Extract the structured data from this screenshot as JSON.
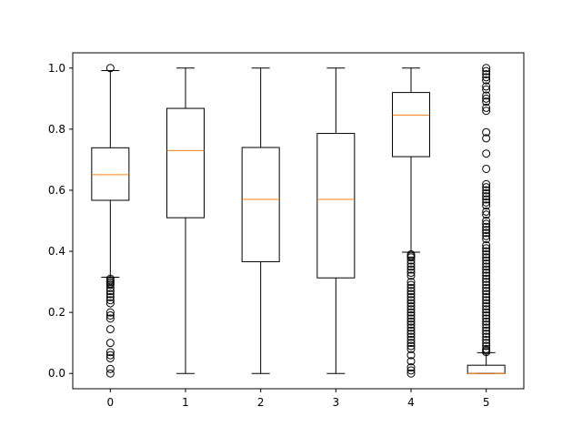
{
  "chart_data": {
    "type": "boxplot",
    "title": "",
    "xlabel": "",
    "ylabel": "",
    "categories": [
      "0",
      "1",
      "2",
      "3",
      "4",
      "5"
    ],
    "ylim": [
      -0.05,
      1.05
    ],
    "yticks": [
      "0.0",
      "0.2",
      "0.4",
      "0.6",
      "0.8",
      "1.0"
    ],
    "ytick_values": [
      0.0,
      0.2,
      0.4,
      0.6,
      0.8,
      1.0
    ],
    "grid": false,
    "colors": {
      "box": "#000000",
      "median": "#ff7f0e",
      "background": "#ffffff"
    },
    "boxes": [
      {
        "category": "0",
        "whisker_low": 0.315,
        "q1": 0.567,
        "median": 0.651,
        "q3": 0.739,
        "whisker_high": 0.992,
        "fliers": [
          1.0,
          0.31,
          0.305,
          0.3,
          0.295,
          0.29,
          0.28,
          0.27,
          0.26,
          0.25,
          0.24,
          0.23,
          0.2,
          0.19,
          0.18,
          0.145,
          0.1,
          0.07,
          0.06,
          0.05,
          0.015,
          0.0
        ]
      },
      {
        "category": "1",
        "whisker_low": 0.0,
        "q1": 0.51,
        "median": 0.73,
        "q3": 0.868,
        "whisker_high": 1.0,
        "fliers": []
      },
      {
        "category": "2",
        "whisker_low": 0.0,
        "q1": 0.366,
        "median": 0.57,
        "q3": 0.74,
        "whisker_high": 1.0,
        "fliers": []
      },
      {
        "category": "3",
        "whisker_low": 0.0,
        "q1": 0.313,
        "median": 0.57,
        "q3": 0.786,
        "whisker_high": 1.0,
        "fliers": []
      },
      {
        "category": "4",
        "whisker_low": 0.397,
        "q1": 0.71,
        "median": 0.846,
        "q3": 0.92,
        "whisker_high": 1.0,
        "fliers": [
          0.39,
          0.385,
          0.38,
          0.37,
          0.36,
          0.35,
          0.34,
          0.33,
          0.32,
          0.3,
          0.29,
          0.28,
          0.27,
          0.26,
          0.25,
          0.24,
          0.23,
          0.22,
          0.21,
          0.2,
          0.19,
          0.18,
          0.17,
          0.16,
          0.15,
          0.14,
          0.13,
          0.12,
          0.11,
          0.1,
          0.09,
          0.08,
          0.06,
          0.04,
          0.02,
          0.01,
          0.0
        ]
      },
      {
        "category": "5",
        "whisker_low": 0.0,
        "q1": 0.0,
        "median": 0.0,
        "q3": 0.027,
        "whisker_high": 0.068,
        "fliers": [
          1.0,
          0.99,
          0.98,
          0.97,
          0.96,
          0.94,
          0.93,
          0.91,
          0.9,
          0.89,
          0.87,
          0.86,
          0.79,
          0.77,
          0.72,
          0.67,
          0.62,
          0.61,
          0.6,
          0.59,
          0.58,
          0.57,
          0.56,
          0.55,
          0.53,
          0.52,
          0.5,
          0.49,
          0.48,
          0.47,
          0.46,
          0.45,
          0.44,
          0.42,
          0.41,
          0.4,
          0.39,
          0.38,
          0.37,
          0.36,
          0.35,
          0.34,
          0.33,
          0.32,
          0.31,
          0.3,
          0.29,
          0.28,
          0.27,
          0.26,
          0.25,
          0.24,
          0.23,
          0.22,
          0.21,
          0.2,
          0.19,
          0.18,
          0.17,
          0.16,
          0.15,
          0.14,
          0.13,
          0.12,
          0.11,
          0.1,
          0.09,
          0.08,
          0.075,
          0.07
        ]
      }
    ]
  }
}
